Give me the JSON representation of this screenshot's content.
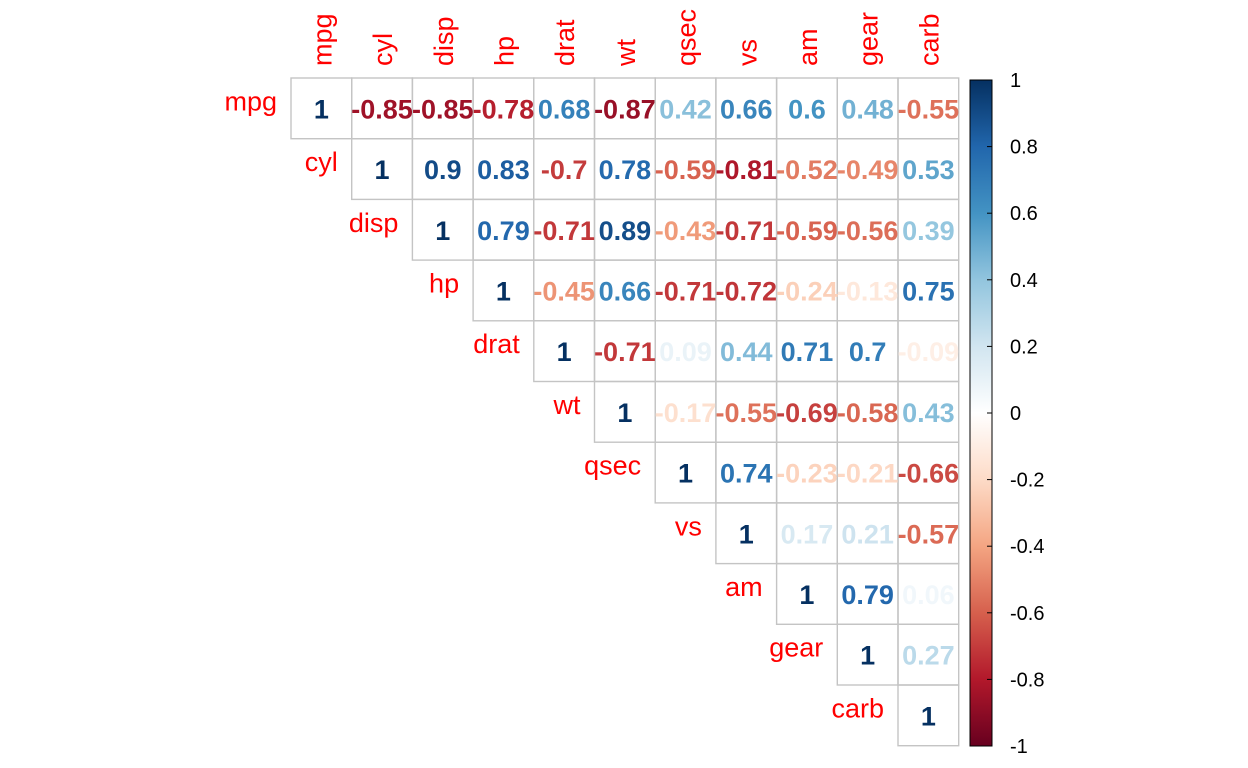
{
  "chart_data": {
    "type": "heatmap",
    "variables": [
      "mpg",
      "cyl",
      "disp",
      "hp",
      "drat",
      "wt",
      "qsec",
      "vs",
      "am",
      "gear",
      "carb"
    ],
    "matrix_type": "upper",
    "label_color": "#ff0000",
    "values": [
      [
        "1",
        "-0.85",
        "-0.85",
        "-0.78",
        "0.68",
        "-0.87",
        "0.42",
        "0.66",
        "0.6",
        "0.48",
        "-0.55"
      ],
      [
        "",
        "1",
        "0.9",
        "0.83",
        "-0.7",
        "0.78",
        "-0.59",
        "-0.81",
        "-0.52",
        "-0.49",
        "0.53"
      ],
      [
        "",
        "",
        "1",
        "0.79",
        "-0.71",
        "0.89",
        "-0.43",
        "-0.71",
        "-0.59",
        "-0.56",
        "0.39"
      ],
      [
        "",
        "",
        "",
        "1",
        "-0.45",
        "0.66",
        "-0.71",
        "-0.72",
        "-0.24",
        "-0.13",
        "0.75"
      ],
      [
        "",
        "",
        "",
        "",
        "1",
        "-0.71",
        "0.09",
        "0.44",
        "0.71",
        "0.7",
        "-0.09"
      ],
      [
        "",
        "",
        "",
        "",
        "",
        "1",
        "-0.17",
        "-0.55",
        "-0.69",
        "-0.58",
        "0.43"
      ],
      [
        "",
        "",
        "",
        "",
        "",
        "",
        "1",
        "0.74",
        "-0.23",
        "-0.21",
        "-0.66"
      ],
      [
        "",
        "",
        "",
        "",
        "",
        "",
        "",
        "1",
        "0.17",
        "0.21",
        "-0.57"
      ],
      [
        "",
        "",
        "",
        "",
        "",
        "",
        "",
        "",
        "1",
        "0.79",
        "0.06"
      ],
      [
        "",
        "",
        "",
        "",
        "",
        "",
        "",
        "",
        "",
        "1",
        "0.27"
      ],
      [
        "",
        "",
        "",
        "",
        "",
        "",
        "",
        "",
        "",
        "",
        "1"
      ]
    ],
    "colorbar": {
      "range": [
        -1,
        1
      ],
      "ticks": [
        "1",
        "0.8",
        "0.6",
        "0.4",
        "0.2",
        "0",
        "-0.2",
        "-0.4",
        "-0.6",
        "-0.8",
        "-1"
      ],
      "colors": [
        "#67001f",
        "#b2182b",
        "#d6604d",
        "#f4a582",
        "#fddbc7",
        "#ffffff",
        "#d1e5f0",
        "#92c5de",
        "#4393c3",
        "#2166ac",
        "#053061"
      ],
      "placement": "right"
    },
    "legend": "right",
    "grid": true
  }
}
